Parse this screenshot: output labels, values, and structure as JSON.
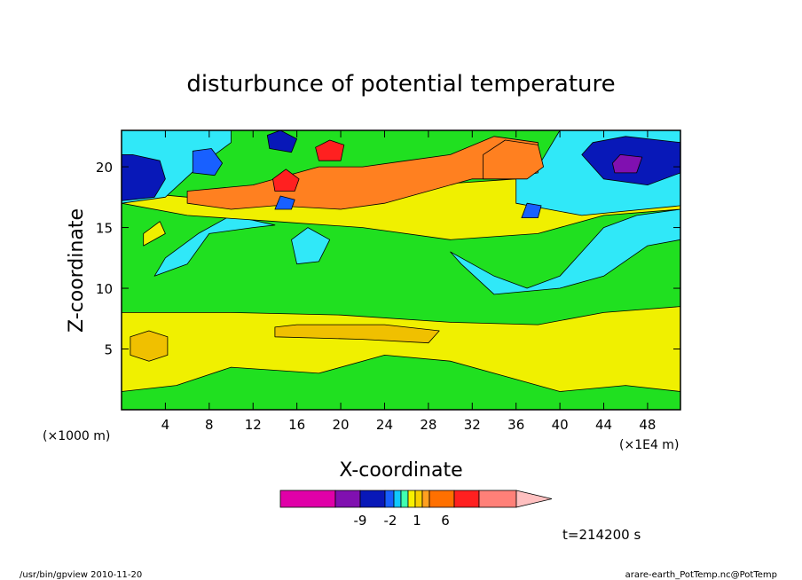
{
  "chart_data": {
    "type": "heatmap",
    "title": "disturbunce of potential temperature",
    "xlabel": "X-coordinate",
    "ylabel": "Z-coordinate",
    "x_unit_left": "(×1000 m)",
    "x_unit_right": "(×1E4 m)",
    "x_ticks": [
      "4",
      "8",
      "12",
      "16",
      "20",
      "24",
      "28",
      "32",
      "36",
      "40",
      "44",
      "48"
    ],
    "y_ticks": [
      "5",
      "10",
      "15",
      "20"
    ],
    "xlim": [
      0,
      51
    ],
    "ylim": [
      0,
      23
    ],
    "time_label": "t=214200 s",
    "colorbar": {
      "colors": [
        "#e000a8",
        "#8010b0",
        "#0818b8",
        "#1860ff",
        "#10c8ff",
        "#40ffb0",
        "#f8f000",
        "#f8d000",
        "#ffa020",
        "#ff7000",
        "#ff2020",
        "#ff8078",
        "#ffc0c0"
      ],
      "labels": [
        "-9",
        "-2",
        "1",
        "6"
      ]
    },
    "regions": [
      {
        "name": "background-green",
        "color": "#20e020",
        "polygon": [
          [
            0,
            0
          ],
          [
            51,
            0
          ],
          [
            51,
            23
          ],
          [
            0,
            23
          ]
        ]
      },
      {
        "name": "low-yellow-band",
        "color": "#f0f000",
        "polygon": [
          [
            0,
            8
          ],
          [
            10,
            8
          ],
          [
            20,
            7.8
          ],
          [
            30,
            7.2
          ],
          [
            38,
            7
          ],
          [
            44,
            8
          ],
          [
            51,
            8.5
          ],
          [
            51,
            1.5
          ],
          [
            46,
            2
          ],
          [
            40,
            1.5
          ],
          [
            36,
            2.5
          ],
          [
            30,
            4
          ],
          [
            24,
            4.5
          ],
          [
            18,
            3
          ],
          [
            10,
            3.5
          ],
          [
            5,
            2
          ],
          [
            0,
            1.5
          ]
        ]
      },
      {
        "name": "low-orange-left",
        "color": "#f0c000",
        "polygon": [
          [
            0.8,
            4.5
          ],
          [
            2.5,
            4
          ],
          [
            4.2,
            4.5
          ],
          [
            4.2,
            6
          ],
          [
            2.5,
            6.5
          ],
          [
            0.8,
            6
          ]
        ]
      },
      {
        "name": "low-orange-mid",
        "color": "#f0c000",
        "polygon": [
          [
            14,
            6
          ],
          [
            22,
            5.8
          ],
          [
            28,
            5.5
          ],
          [
            29,
            6.5
          ],
          [
            24,
            7
          ],
          [
            16,
            7
          ],
          [
            14,
            6.8
          ]
        ]
      },
      {
        "name": "mid-cyan-left",
        "color": "#30e8f8",
        "polygon": [
          [
            3,
            11
          ],
          [
            6,
            12
          ],
          [
            8,
            14.5
          ],
          [
            12,
            15
          ],
          [
            14,
            15.2
          ],
          [
            10,
            16
          ],
          [
            7,
            14.5
          ],
          [
            4,
            12.5
          ]
        ]
      },
      {
        "name": "mid-cyan-patch",
        "color": "#30e8f8",
        "polygon": [
          [
            16,
            12
          ],
          [
            18,
            12.2
          ],
          [
            19,
            14
          ],
          [
            17,
            15
          ],
          [
            15.5,
            14
          ]
        ]
      },
      {
        "name": "mid-cyan-right",
        "color": "#30e8f8",
        "polygon": [
          [
            30,
            13
          ],
          [
            34,
            11
          ],
          [
            37,
            10
          ],
          [
            40,
            11
          ],
          [
            42,
            13
          ],
          [
            44,
            15
          ],
          [
            47,
            16
          ],
          [
            51,
            16.5
          ],
          [
            51,
            14
          ],
          [
            48,
            13.5
          ],
          [
            44,
            11
          ],
          [
            40,
            10
          ],
          [
            34,
            9.5
          ],
          [
            31,
            12
          ]
        ]
      },
      {
        "name": "upper-yellow",
        "color": "#f0f000",
        "polygon": [
          [
            0,
            17
          ],
          [
            6,
            16
          ],
          [
            14,
            15.5
          ],
          [
            22,
            15
          ],
          [
            30,
            14
          ],
          [
            38,
            14.5
          ],
          [
            44,
            16
          ],
          [
            51,
            16.5
          ],
          [
            51,
            18
          ],
          [
            44,
            19
          ],
          [
            36,
            19
          ],
          [
            28,
            18.5
          ],
          [
            22,
            18
          ],
          [
            14,
            18
          ],
          [
            6,
            17.5
          ],
          [
            0,
            18
          ]
        ]
      },
      {
        "name": "upper-cyan-right",
        "color": "#30e8f8",
        "polygon": [
          [
            36,
            17
          ],
          [
            42,
            16
          ],
          [
            51,
            16.8
          ],
          [
            51,
            23
          ],
          [
            40,
            23
          ],
          [
            38,
            20
          ],
          [
            36,
            19
          ]
        ]
      },
      {
        "name": "upper-cyan-left",
        "color": "#30e8f8",
        "polygon": [
          [
            0,
            17
          ],
          [
            4,
            17.5
          ],
          [
            7,
            20
          ],
          [
            10,
            22
          ],
          [
            10,
            23
          ],
          [
            0,
            23
          ]
        ]
      },
      {
        "name": "dark-blue-left",
        "color": "#0818b8",
        "polygon": [
          [
            0,
            17.2
          ],
          [
            3,
            17.5
          ],
          [
            4,
            19
          ],
          [
            3.5,
            20.5
          ],
          [
            1,
            21
          ],
          [
            0,
            21
          ]
        ]
      },
      {
        "name": "dark-blue-right",
        "color": "#0818b8",
        "polygon": [
          [
            42,
            21
          ],
          [
            44,
            19
          ],
          [
            48,
            18.5
          ],
          [
            51,
            19.5
          ],
          [
            51,
            22
          ],
          [
            46,
            22.5
          ],
          [
            43,
            22
          ]
        ]
      },
      {
        "name": "blue-patch-left",
        "color": "#1860ff",
        "polygon": [
          [
            6.5,
            19.5
          ],
          [
            8.5,
            19.3
          ],
          [
            9.2,
            20.3
          ],
          [
            8.2,
            21.5
          ],
          [
            6.5,
            21.3
          ]
        ]
      },
      {
        "name": "blue-patch-top",
        "color": "#0818b8",
        "polygon": [
          [
            13.5,
            21.5
          ],
          [
            15.5,
            21.2
          ],
          [
            16,
            22.3
          ],
          [
            14.5,
            23
          ],
          [
            13.3,
            22.6
          ]
        ]
      },
      {
        "name": "upper-orange-band",
        "color": "#ff8020",
        "polygon": [
          [
            6,
            17
          ],
          [
            10,
            16.5
          ],
          [
            14,
            16.8
          ],
          [
            20,
            16.5
          ],
          [
            24,
            17
          ],
          [
            28,
            18
          ],
          [
            32,
            19
          ],
          [
            35,
            19
          ],
          [
            38,
            19.5
          ],
          [
            38,
            22
          ],
          [
            34,
            22.5
          ],
          [
            30,
            21
          ],
          [
            26,
            20.5
          ],
          [
            22,
            20
          ],
          [
            18,
            20
          ],
          [
            12,
            18.5
          ],
          [
            6,
            18
          ]
        ]
      },
      {
        "name": "red-cell-a",
        "color": "#ff2020",
        "polygon": [
          [
            14,
            18
          ],
          [
            15.8,
            18
          ],
          [
            16.2,
            19
          ],
          [
            15,
            19.8
          ],
          [
            13.8,
            19
          ]
        ]
      },
      {
        "name": "red-cell-b",
        "color": "#ff2020",
        "polygon": [
          [
            18,
            20.5
          ],
          [
            20,
            20.5
          ],
          [
            20.3,
            21.8
          ],
          [
            19,
            22.2
          ],
          [
            17.7,
            21.6
          ]
        ]
      },
      {
        "name": "orange-blob-right",
        "color": "#ff8020",
        "polygon": [
          [
            33,
            19
          ],
          [
            37,
            19
          ],
          [
            38.5,
            20
          ],
          [
            38,
            21.8
          ],
          [
            35,
            22.2
          ],
          [
            33,
            21
          ]
        ]
      },
      {
        "name": "blue-small-low",
        "color": "#1860ff",
        "polygon": [
          [
            14,
            16.5
          ],
          [
            15.5,
            16.5
          ],
          [
            15.8,
            17.3
          ],
          [
            14.5,
            17.6
          ]
        ]
      },
      {
        "name": "blue-small-right",
        "color": "#1860ff",
        "polygon": [
          [
            36.5,
            15.8
          ],
          [
            38,
            15.8
          ],
          [
            38.3,
            16.8
          ],
          [
            37,
            17
          ]
        ]
      },
      {
        "name": "purple-cells",
        "color": "#8010b0",
        "polygon": [
          [
            45,
            19.5
          ],
          [
            47,
            19.5
          ],
          [
            47.5,
            20.8
          ],
          [
            45.5,
            21
          ],
          [
            44.8,
            20.3
          ]
        ]
      },
      {
        "name": "small-yellow-left",
        "color": "#f0f000",
        "polygon": [
          [
            2,
            13.5
          ],
          [
            4,
            14.5
          ],
          [
            3.5,
            15.5
          ],
          [
            2,
            14.5
          ]
        ]
      }
    ]
  },
  "footer": {
    "left": "/usr/bin/gpview  2010-11-20",
    "right": "arare-earth_PotTemp.nc@PotTemp"
  }
}
